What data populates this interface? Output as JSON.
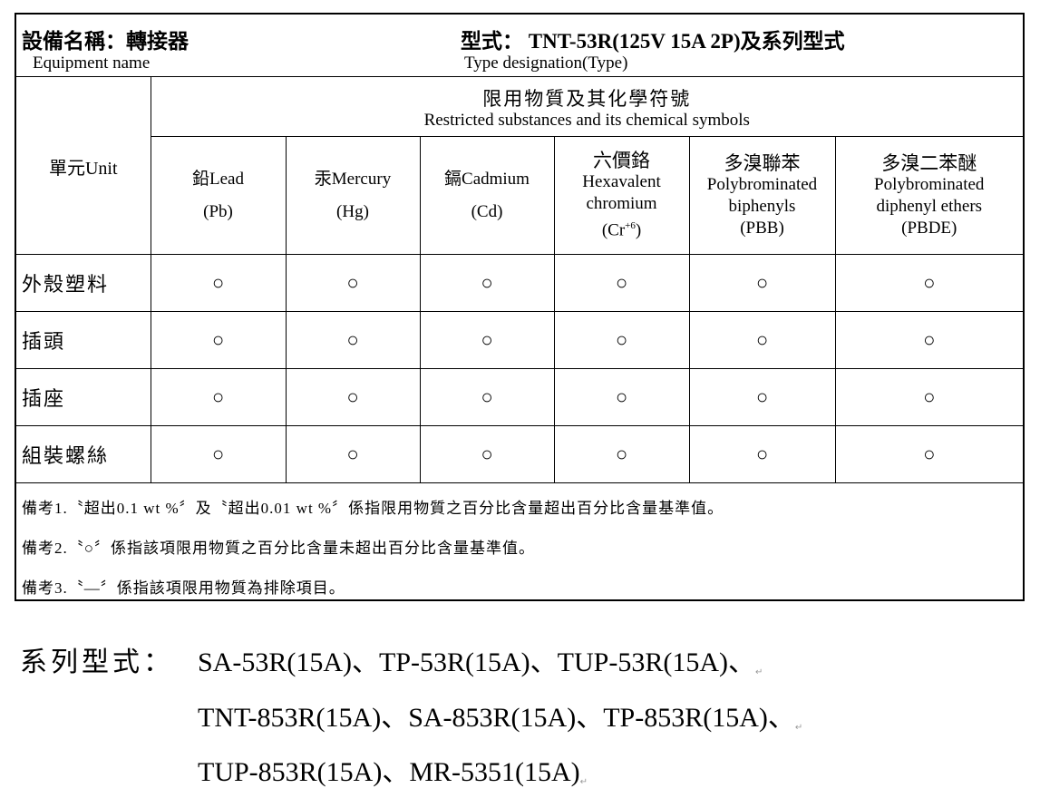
{
  "header": {
    "equipment_label_zh": "設備名稱：轉接器",
    "equipment_label_en": "Equipment name",
    "type_label_zh": "型式： TNT-53R(125V 15A 2P)及系列型式",
    "type_label_en": "Type designation(Type)"
  },
  "table": {
    "unit_header": "單元Unit",
    "substances_header_zh": "限用物質及其化學符號",
    "substances_header_en": "Restricted substances and its chemical symbols",
    "columns": [
      {
        "line1": "鉛Lead",
        "line2": "(Pb)"
      },
      {
        "line1": "汞Mercury",
        "line2": "(Hg)"
      },
      {
        "line1": "鎘Cadmium",
        "line2": "(Cd)"
      },
      {
        "line0": "六價鉻",
        "line1": "Hexavalent",
        "line2": "chromium",
        "line3": "(Cr",
        "sup": "+6",
        "line3_end": ")"
      },
      {
        "line0": "多溴聯苯",
        "line1": "Polybrominated",
        "line2": "biphenyls",
        "line3": "(PBB)"
      },
      {
        "line0": "多溴二苯醚",
        "line1": "Polybrominated",
        "line2": "diphenyl ethers",
        "line3": "(PBDE)"
      }
    ],
    "rows": [
      {
        "unit": "外殼塑料",
        "values": [
          "○",
          "○",
          "○",
          "○",
          "○",
          "○"
        ]
      },
      {
        "unit": "插頭",
        "values": [
          "○",
          "○",
          "○",
          "○",
          "○",
          "○"
        ]
      },
      {
        "unit": "插座",
        "values": [
          "○",
          "○",
          "○",
          "○",
          "○",
          "○"
        ]
      },
      {
        "unit": "組裝螺絲",
        "values": [
          "○",
          "○",
          "○",
          "○",
          "○",
          "○"
        ]
      }
    ],
    "notes": [
      "備考1.〝超出0.1 wt %〞及〝超出0.01 wt %〞係指限用物質之百分比含量超出百分比含量基準值。",
      "備考2.〝○〞係指該項限用物質之百分比含量未超出百分比含量基準值。",
      "備考3.〝—〞係指該項限用物質為排除項目。"
    ]
  },
  "series": {
    "label": "系列型式：",
    "lines": [
      "SA-53R(15A)、TP-53R(15A)、TUP-53R(15A)、",
      "TNT-853R(15A)、SA-853R(15A)、TP-853R(15A)、",
      "TUP-853R(15A)、MR-5351(15A)"
    ]
  }
}
